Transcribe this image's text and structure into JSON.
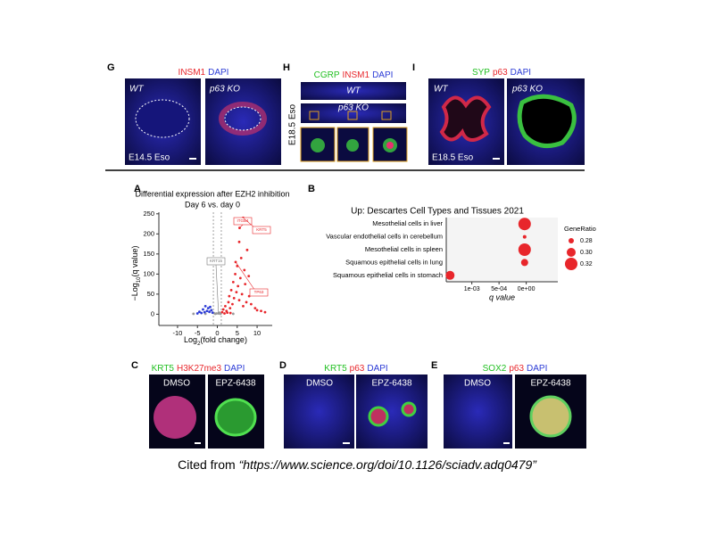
{
  "panels": {
    "G": {
      "label": "G",
      "stains": [
        {
          "text": "INSM1",
          "color": "#e8262b"
        },
        {
          "text": "DAPI",
          "color": "#2b3bd6"
        }
      ],
      "captions": [
        "WT",
        "p63 KO",
        "E14.5 Eso"
      ]
    },
    "H": {
      "label": "H",
      "stains": [
        {
          "text": "CGRP",
          "color": "#22c022"
        },
        {
          "text": "INSM1",
          "color": "#e8262b"
        },
        {
          "text": "DAPI",
          "color": "#2b3bd6"
        }
      ],
      "captions": [
        "WT",
        "p63 KO",
        "E18.5 Eso"
      ]
    },
    "I": {
      "label": "I",
      "stains": [
        {
          "text": "SYP",
          "color": "#22c022"
        },
        {
          "text": "p63",
          "color": "#e8262b"
        },
        {
          "text": "DAPI",
          "color": "#2b3bd6"
        }
      ],
      "captions": [
        "WT",
        "p63 KO",
        "E18.5 Eso"
      ]
    },
    "C": {
      "label": "C",
      "stains": [
        {
          "text": "KRT5",
          "color": "#22c022"
        },
        {
          "text": "H3K27me3",
          "color": "#e8262b"
        },
        {
          "text": "DAPI",
          "color": "#2b3bd6"
        }
      ],
      "captions": [
        "DMSO",
        "EPZ-6438"
      ]
    },
    "D": {
      "label": "D",
      "stains": [
        {
          "text": "KRT5",
          "color": "#22c022"
        },
        {
          "text": "p63",
          "color": "#e8262b"
        },
        {
          "text": "DAPI",
          "color": "#2b3bd6"
        }
      ],
      "captions": [
        "DMSO",
        "EPZ-6438"
      ]
    },
    "E": {
      "label": "E",
      "stains": [
        {
          "text": "SOX2",
          "color": "#22c022"
        },
        {
          "text": "p63",
          "color": "#e8262b"
        },
        {
          "text": "DAPI",
          "color": "#2b3bd6"
        }
      ],
      "captions": [
        "DMSO",
        "EPZ-6438"
      ]
    }
  },
  "chart_data": [
    {
      "type": "scatter",
      "label": "A",
      "title": "Differential expression after EZH2 inhibition",
      "subtitle": "Day 6 vs. day 0",
      "x_label": {
        "main": "Log",
        "sub": "2",
        "rest": "(fold change)"
      },
      "y_label": {
        "main": "−Log",
        "sub": "10",
        "rest": "(q value)"
      },
      "xlim": [
        -14.7,
        13.8
      ],
      "ylim": [
        -28,
        254
      ],
      "xticks": [
        -10,
        -5,
        0,
        5,
        10
      ],
      "yticks": [
        0,
        50,
        100,
        150,
        200,
        250
      ],
      "thresholds_x": [
        -1,
        1
      ],
      "series": [
        {
          "color": "#9a9a9a",
          "x": [
            -0.5,
            0.3,
            0.8,
            -0.9,
            0.5,
            -3,
            -6,
            4,
            -0.2
          ],
          "values": [
            1,
            2,
            1,
            3,
            4,
            1,
            1,
            1,
            2
          ]
        },
        {
          "color": "#2b3bd6",
          "x": [
            -1.2,
            -1.5,
            -2,
            -2.3,
            -2.6,
            -3,
            -3.2,
            -3.6,
            -4,
            -4.5,
            -5,
            -1.8
          ],
          "values": [
            4,
            10,
            6,
            15,
            8,
            20,
            5,
            12,
            3,
            6,
            2,
            18
          ]
        },
        {
          "color": "#e8262b",
          "x": [
            1.2,
            1.5,
            2,
            2.3,
            2.8,
            3,
            3.2,
            3.5,
            3.8,
            4,
            4.2,
            4.5,
            4.8,
            5,
            5.2,
            5.5,
            5.8,
            6,
            6.2,
            6.5,
            6.8,
            7,
            7.3,
            7.5,
            8,
            8.5,
            9,
            9.5,
            10,
            11,
            12,
            5.6,
            6.5,
            5.5,
            4.6,
            7.9,
            2.5,
            3.3,
            1.8
          ],
          "values": [
            5,
            12,
            20,
            8,
            30,
            45,
            15,
            60,
            25,
            80,
            40,
            100,
            55,
            120,
            70,
            35,
            90,
            140,
            50,
            20,
            110,
            75,
            30,
            160,
            45,
            25,
            60,
            15,
            10,
            8,
            5,
            215,
            240,
            180,
            130,
            95,
            4,
            3,
            2
          ]
        }
      ],
      "annotations": [
        {
          "text": "ITGB4",
          "x": 5.6,
          "y": 215,
          "color": "#e8262b"
        },
        {
          "text": "KRT5",
          "x": 6.5,
          "y": 240,
          "color": "#e8262b"
        },
        {
          "text": "KRT15",
          "x": 0.3,
          "y": 2,
          "color": "#777777"
        },
        {
          "text": "TP63",
          "x": 4.6,
          "y": 130,
          "color": "#e8262b"
        }
      ]
    },
    {
      "type": "dot",
      "label": "B",
      "title": "Up: Descartes Cell Types and Tissues 2021",
      "categories": [
        "Mesothelial cells in liver",
        "Vascular endothelial cells in cerebellum",
        "Mesothelial cells in spleen",
        "Squamous epithelial cells in lung",
        "Squamous epithelial cells in stomach"
      ],
      "values": [
        3e-05,
        3e-05,
        3e-05,
        3e-05,
        0.0014
      ],
      "sizes": [
        0.32,
        0.27,
        0.32,
        0.29,
        0.3
      ],
      "color": "#e8262b",
      "x_label": "q value",
      "xlim": [
        0.00147,
        -0.00058
      ],
      "xticks": [
        {
          "value": 0.001,
          "label": "1e-03"
        },
        {
          "value": 0.0005,
          "label": "5e-04"
        },
        {
          "value": 0,
          "label": "0e+00"
        }
      ],
      "size_legend": {
        "title": "GeneRatio",
        "values": [
          {
            "value": 0.28,
            "label": "0.28"
          },
          {
            "value": 0.3,
            "label": "0.30"
          },
          {
            "value": 0.32,
            "label": "0.32"
          }
        ]
      }
    }
  ],
  "citation": {
    "prefix": "Cited from ",
    "source": "“https://www.science.org/doi/10.1126/sciadv.adq0479”"
  }
}
